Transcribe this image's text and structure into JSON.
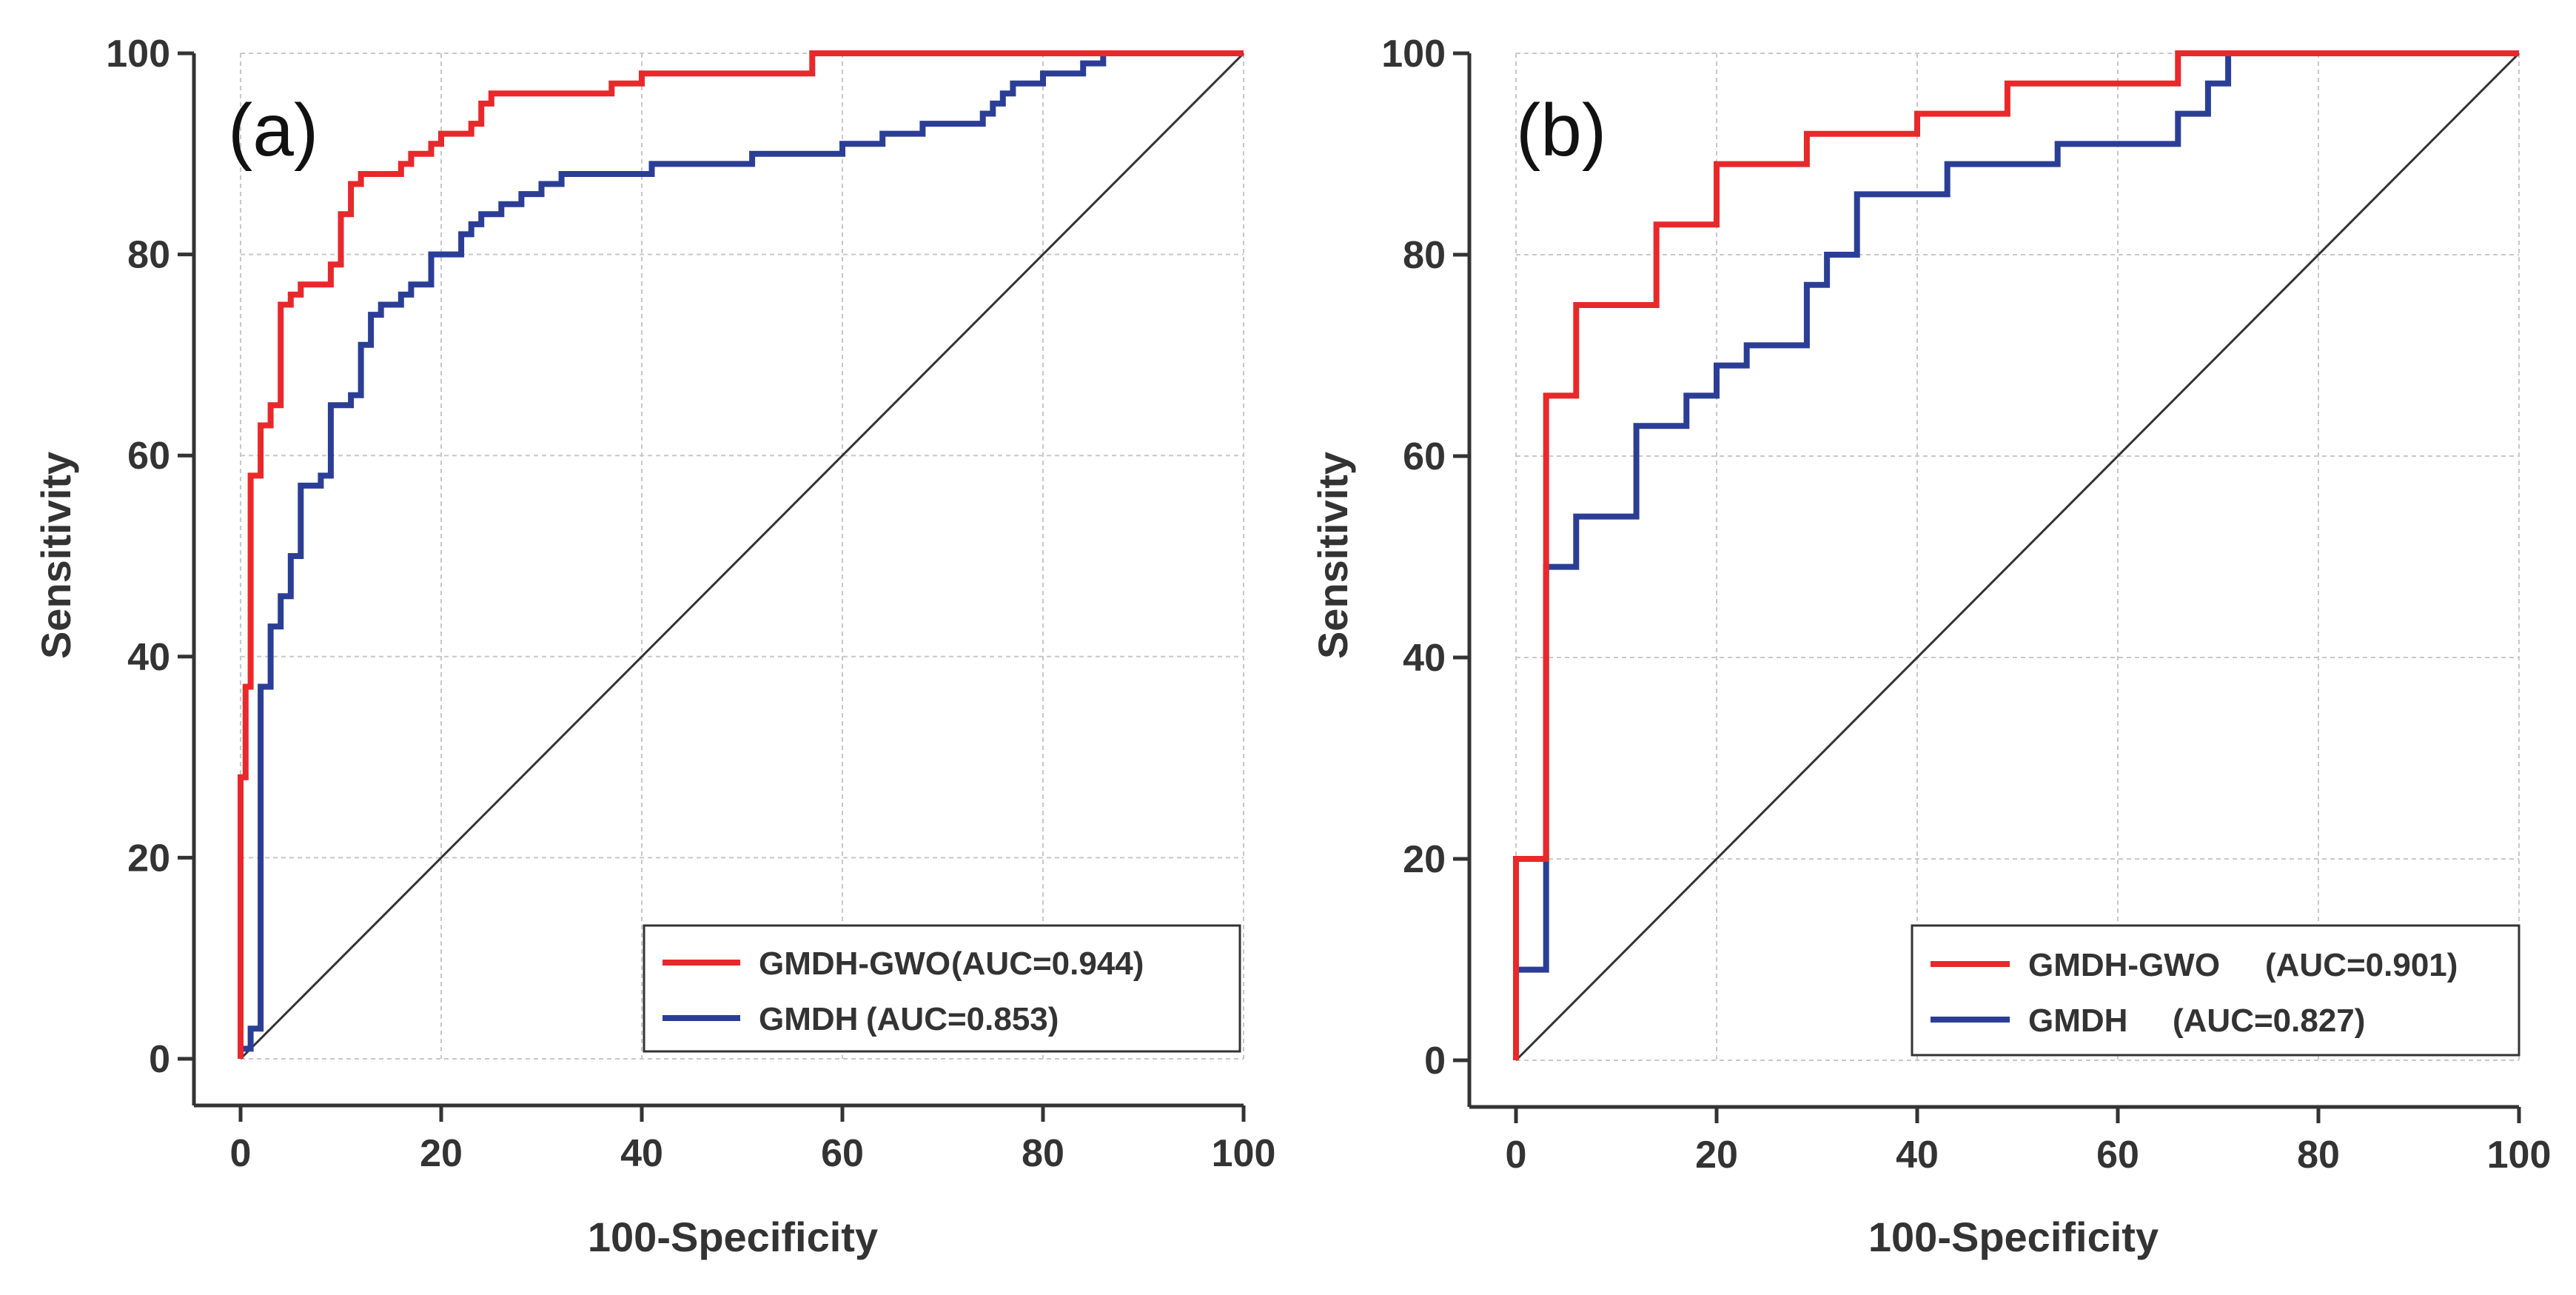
{
  "chart_data": [
    {
      "type": "line",
      "panel_label": "(a)",
      "xlabel": "100-Specificity",
      "ylabel": "Sensitivity",
      "xlim": [
        0,
        100
      ],
      "ylim": [
        0,
        100
      ],
      "xticks": [
        "0",
        "20",
        "40",
        "60",
        "80",
        "100"
      ],
      "yticks": [
        "0",
        "20",
        "40",
        "60",
        "80",
        "100"
      ],
      "grid": true,
      "legend_position": "bottom-right",
      "reference_line": {
        "x": [
          0,
          100
        ],
        "y": [
          0,
          100
        ],
        "color": "#333333"
      },
      "series": [
        {
          "name": "GMDH-GWO",
          "auc_label": "(AUC=0.944)",
          "color": "#e8282b",
          "x": [
            0,
            0,
            0.5,
            0.5,
            1,
            1,
            2,
            2,
            3,
            3,
            4,
            4,
            5,
            5,
            6,
            6,
            7,
            7,
            9,
            9,
            10,
            10,
            11,
            11,
            12,
            12,
            14,
            14,
            16,
            16,
            17,
            17,
            19,
            19,
            20,
            20,
            22,
            22,
            23,
            23,
            24,
            24,
            25,
            25,
            37,
            37,
            40,
            40,
            43,
            43,
            57,
            57,
            100
          ],
          "y": [
            0,
            28,
            28,
            37,
            37,
            58,
            58,
            63,
            63,
            65,
            65,
            75,
            75,
            76,
            76,
            77,
            77,
            77,
            77,
            79,
            79,
            84,
            84,
            87,
            87,
            88,
            88,
            88,
            88,
            89,
            89,
            90,
            90,
            91,
            91,
            92,
            92,
            92,
            92,
            93,
            93,
            95,
            95,
            96,
            96,
            97,
            97,
            98,
            98,
            98,
            98,
            100,
            100
          ]
        },
        {
          "name": "GMDH",
          "auc_label": "(AUC=0.853)",
          "color": "#2b3e96",
          "x": [
            0,
            0,
            1,
            1,
            2,
            2,
            3,
            3,
            4,
            4,
            5,
            5,
            6,
            6,
            7,
            7,
            8,
            8,
            9,
            9,
            11,
            11,
            12,
            12,
            13,
            13,
            14,
            14,
            16,
            16,
            17,
            17,
            19,
            19,
            22,
            22,
            23,
            23,
            24,
            24,
            26,
            26,
            28,
            28,
            30,
            30,
            32,
            32,
            41,
            41,
            51,
            51,
            55,
            55,
            60,
            60,
            64,
            64,
            68,
            68,
            74,
            74,
            75,
            75,
            76,
            76,
            77,
            77,
            78,
            78,
            80,
            80,
            82,
            82,
            84,
            84,
            86,
            86,
            100
          ],
          "y": [
            0,
            1,
            1,
            3,
            3,
            37,
            37,
            43,
            43,
            46,
            46,
            50,
            50,
            57,
            57,
            57,
            57,
            58,
            58,
            65,
            65,
            66,
            66,
            71,
            71,
            74,
            74,
            75,
            75,
            76,
            76,
            77,
            77,
            80,
            80,
            82,
            82,
            83,
            83,
            84,
            84,
            85,
            85,
            86,
            86,
            87,
            87,
            88,
            88,
            89,
            89,
            90,
            90,
            90,
            90,
            91,
            91,
            92,
            92,
            93,
            93,
            94,
            94,
            95,
            95,
            96,
            96,
            97,
            97,
            97,
            97,
            98,
            98,
            98,
            98,
            99,
            99,
            100,
            100
          ]
        }
      ]
    },
    {
      "type": "line",
      "panel_label": "(b)",
      "xlabel": "100-Specificity",
      "ylabel": "Sensitivity",
      "xlim": [
        0,
        100
      ],
      "ylim": [
        0,
        100
      ],
      "xticks": [
        "0",
        "20",
        "40",
        "60",
        "80",
        "100"
      ],
      "yticks": [
        "0",
        "20",
        "40",
        "60",
        "80",
        "100"
      ],
      "grid": true,
      "legend_position": "bottom-right",
      "reference_line": {
        "x": [
          0,
          100
        ],
        "y": [
          0,
          100
        ],
        "color": "#333333"
      },
      "series": [
        {
          "name": "GMDH-GWO",
          "auc_label": "(AUC=0.901)",
          "color": "#e8282b",
          "x": [
            0,
            0,
            3,
            3,
            6,
            6,
            14,
            14,
            20,
            20,
            29,
            29,
            40,
            40,
            49,
            49,
            66,
            66,
            100
          ],
          "y": [
            0,
            20,
            20,
            66,
            66,
            75,
            75,
            83,
            83,
            89,
            89,
            92,
            92,
            94,
            94,
            97,
            97,
            100,
            100
          ]
        },
        {
          "name": "GMDH",
          "auc_label": "(AUC=0.827)",
          "color": "#2b3e96",
          "x": [
            0,
            0,
            3,
            3,
            6,
            6,
            12,
            12,
            17,
            17,
            20,
            20,
            23,
            23,
            26,
            26,
            29,
            29,
            31,
            31,
            34,
            34,
            37,
            37,
            43,
            43,
            54,
            54,
            66,
            66,
            69,
            69,
            71,
            71,
            100
          ],
          "y": [
            0,
            9,
            9,
            49,
            49,
            54,
            54,
            63,
            63,
            66,
            66,
            69,
            69,
            71,
            71,
            71,
            71,
            77,
            77,
            80,
            80,
            86,
            86,
            86,
            86,
            89,
            89,
            91,
            91,
            94,
            94,
            97,
            97,
            100,
            100
          ]
        }
      ]
    }
  ]
}
